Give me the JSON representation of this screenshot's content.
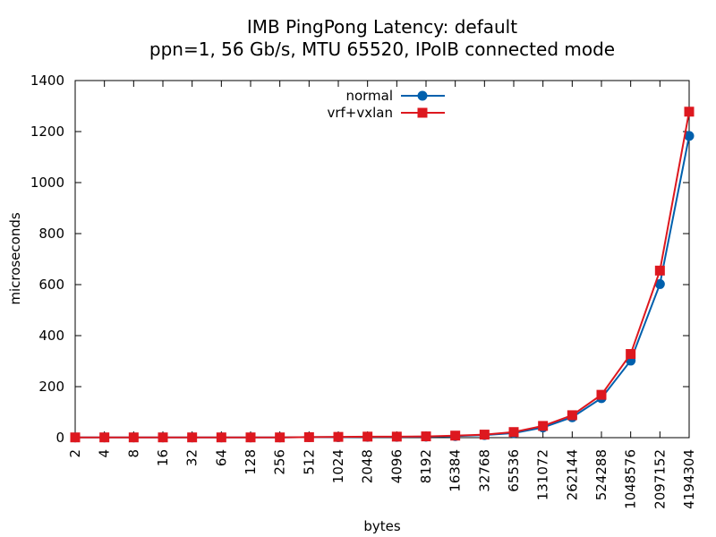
{
  "chart_data": {
    "type": "line",
    "title": "IMB PingPong Latency: default",
    "subtitle": "ppn=1, 56 Gb/s, MTU 65520, IPoIB connected mode",
    "xlabel": "bytes",
    "ylabel": "microseconds",
    "categories": [
      "2",
      "4",
      "8",
      "16",
      "32",
      "64",
      "128",
      "256",
      "512",
      "1024",
      "2048",
      "4096",
      "8192",
      "16384",
      "32768",
      "65536",
      "131072",
      "262144",
      "524288",
      "1048576",
      "2097152",
      "4194304"
    ],
    "yticks": [
      "0",
      "200",
      "400",
      "600",
      "800",
      "1000",
      "1200",
      "1400"
    ],
    "ylim": [
      0,
      1400
    ],
    "grid": false,
    "legend_position": "top-center",
    "series": [
      {
        "name": "normal",
        "color": "#0060ad",
        "marker": "circle",
        "values": [
          1,
          1,
          1,
          1,
          1,
          1,
          1,
          1,
          2,
          2,
          3,
          3,
          4,
          6,
          10,
          18,
          40,
          80,
          155,
          302,
          602,
          1183
        ]
      },
      {
        "name": "vrf+vxlan",
        "color": "#dd181f",
        "marker": "square",
        "values": [
          1,
          1,
          1,
          1,
          1,
          1,
          1,
          1,
          2,
          3,
          4,
          4,
          5,
          8,
          12,
          22,
          46,
          88,
          168,
          328,
          655,
          1278
        ]
      }
    ]
  }
}
